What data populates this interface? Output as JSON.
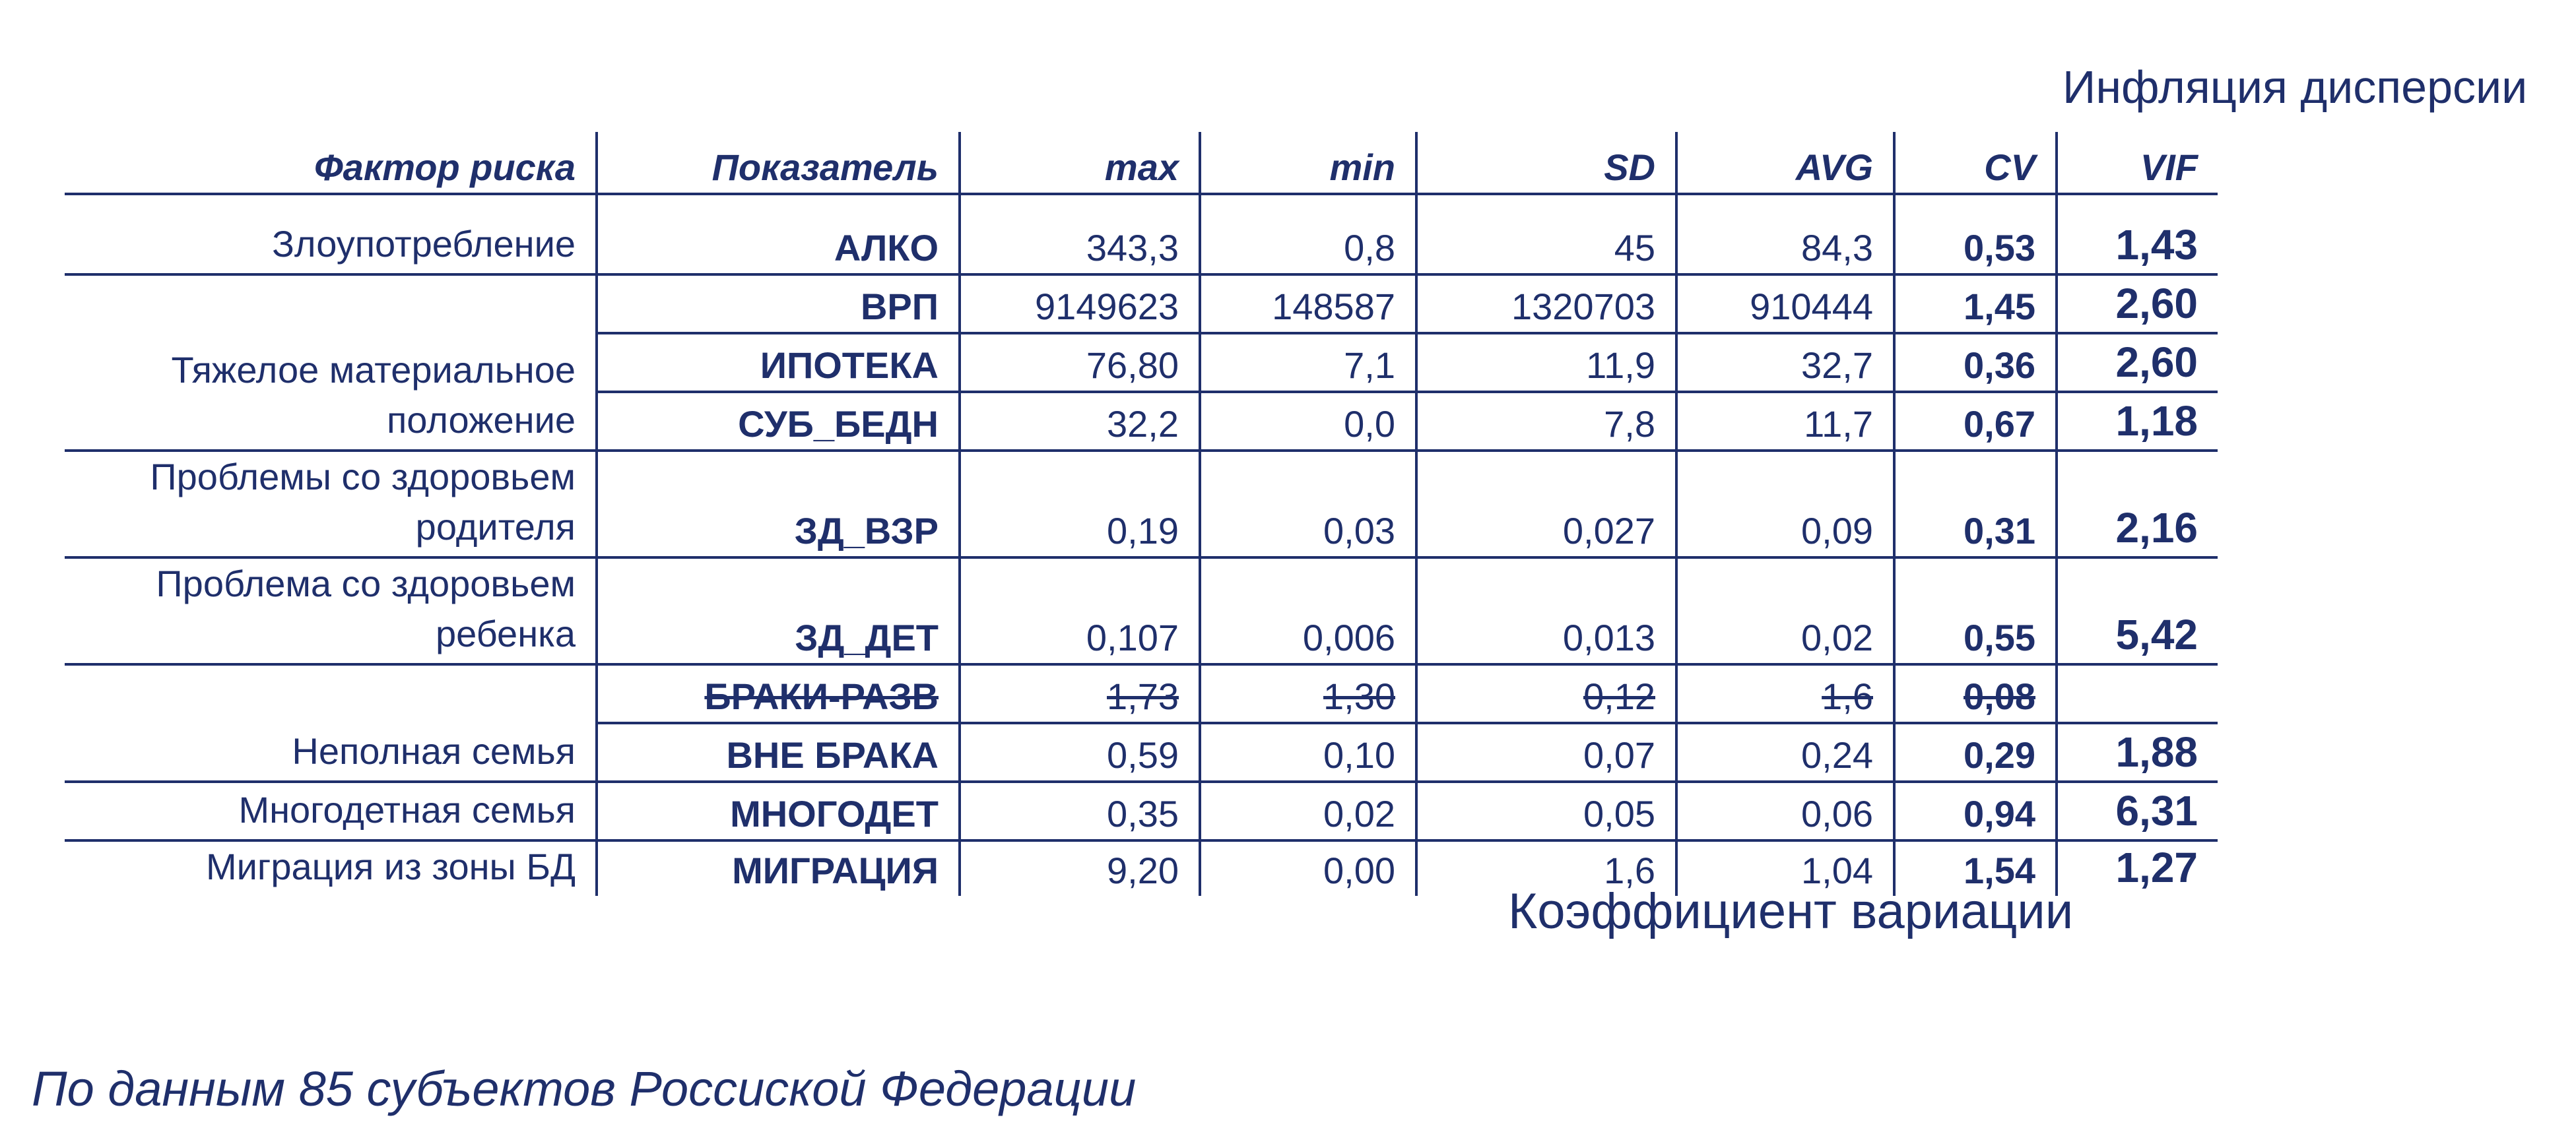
{
  "annotations": {
    "vif_label": "Инфляция дисперсии",
    "cv_label": "Коэффициент вариации",
    "footnote": "По данным 85 субъектов Россиской Федерации"
  },
  "table": {
    "headers": [
      "Фактор риска",
      "Показатель",
      "max",
      "min",
      "SD",
      "AVG",
      "CV",
      "VIF"
    ],
    "factors": {
      "abuse": "Злоупотребление",
      "material": "Тяжелое материальное положение",
      "parent_health": "Проблемы со здоровьем родителя",
      "child_health": "Проблема со здоровьем ребенка",
      "single_parent": "Неполная семья",
      "large_family": "Многодетная семья",
      "migration": "Миграция из зоны БД"
    },
    "rows": [
      {
        "indicator": "АЛКО",
        "max": "343,3",
        "min": "0,8",
        "sd": "45",
        "avg": "84,3",
        "cv": "0,53",
        "vif": "1,43"
      },
      {
        "indicator": "ВРП",
        "max": "9149623",
        "min": "148587",
        "sd": "1320703",
        "avg": "910444",
        "cv": "1,45",
        "vif": "2,60"
      },
      {
        "indicator": "ИПОТЕКА",
        "max": "76,80",
        "min": "7,1",
        "sd": "11,9",
        "avg": "32,7",
        "cv": "0,36",
        "vif": "2,60"
      },
      {
        "indicator": "СУБ_БЕДН",
        "max": "32,2",
        "min": "0,0",
        "sd": "7,8",
        "avg": "11,7",
        "cv": "0,67",
        "vif": "1,18"
      },
      {
        "indicator": "ЗД_ВЗР",
        "max": "0,19",
        "min": "0,03",
        "sd": "0,027",
        "avg": "0,09",
        "cv": "0,31",
        "vif": "2,16"
      },
      {
        "indicator": "ЗД_ДЕТ",
        "max": "0,107",
        "min": "0,006",
        "sd": "0,013",
        "avg": "0,02",
        "cv": "0,55",
        "vif": "5,42"
      },
      {
        "indicator": "БРАКИ-РАЗВ",
        "max": "1,73",
        "min": "1,30",
        "sd": "0,12",
        "avg": "1,6",
        "cv": "0,08",
        "vif": ""
      },
      {
        "indicator": "ВНЕ БРАКА",
        "max": "0,59",
        "min": "0,10",
        "sd": "0,07",
        "avg": "0,24",
        "cv": "0,29",
        "vif": "1,88"
      },
      {
        "indicator": "МНОГОДЕТ",
        "max": "0,35",
        "min": "0,02",
        "sd": "0,05",
        "avg": "0,06",
        "cv": "0,94",
        "vif": "6,31"
      },
      {
        "indicator": "МИГРАЦИЯ",
        "max": "9,20",
        "min": "0,00",
        "sd": "1,6",
        "avg": "1,04",
        "cv": "1,54",
        "vif": "1,27"
      }
    ]
  }
}
